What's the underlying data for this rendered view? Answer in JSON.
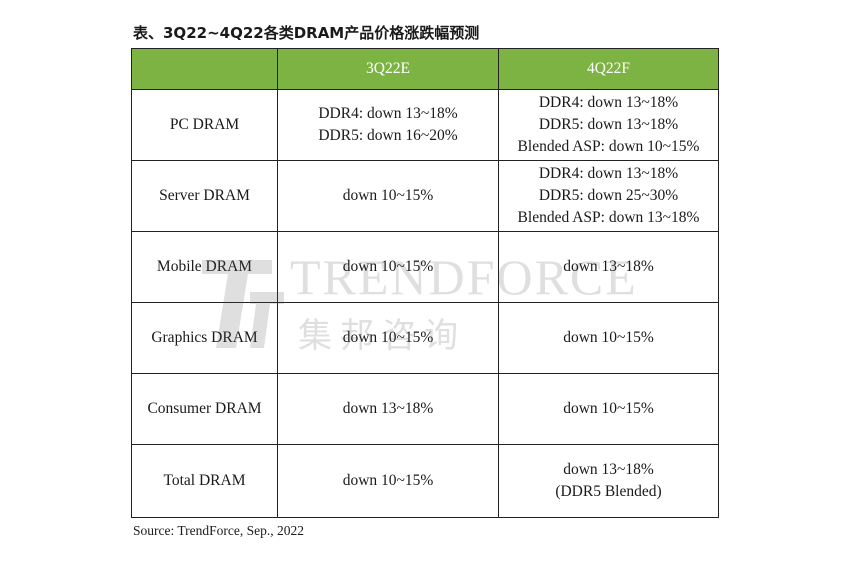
{
  "title": "表、3Q22~4Q22各类DRAM产品价格涨跌幅预测",
  "table": {
    "headers": [
      "",
      "3Q22E",
      "4Q22F"
    ],
    "rows": [
      {
        "category": "PC DRAM",
        "q3": [
          "DDR4: down 13~18%",
          "DDR5: down 16~20%"
        ],
        "q4": [
          "DDR4: down 13~18%",
          "DDR5: down 13~18%",
          "Blended ASP: down 10~15%"
        ]
      },
      {
        "category": "Server DRAM",
        "q3": [
          "down 10~15%"
        ],
        "q4": [
          "DDR4: down 13~18%",
          "DDR5: down 25~30%",
          "Blended ASP: down 13~18%"
        ]
      },
      {
        "category": "Mobile DRAM",
        "q3": [
          "down 10~15%"
        ],
        "q4": [
          "down 13~18%"
        ]
      },
      {
        "category": "Graphics DRAM",
        "q3": [
          "down 10~15%"
        ],
        "q4": [
          "down 10~15%"
        ]
      },
      {
        "category": "Consumer DRAM",
        "q3": [
          "down 13~18%"
        ],
        "q4": [
          "down 10~15%"
        ]
      },
      {
        "category": "Total DRAM",
        "q3": [
          "down 10~15%"
        ],
        "q4": [
          "down 13~18%",
          "(DDR5 Blended)"
        ]
      }
    ]
  },
  "watermark": {
    "brand": "TRENDFORCE",
    "subtitle": "集邦咨询"
  },
  "source": "Source: TrendForce, Sep., 2022",
  "colors": {
    "header_bg": "#7cb342",
    "header_text": "#ffffff",
    "border": "#222222"
  }
}
